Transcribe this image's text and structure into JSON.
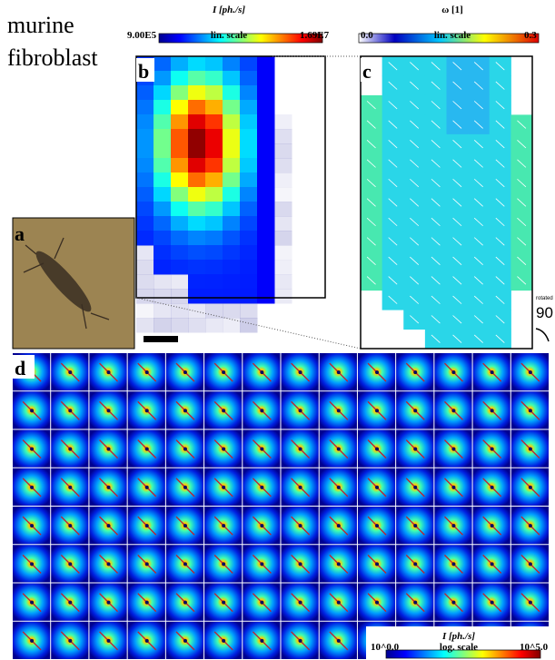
{
  "title": {
    "line1": "murine",
    "line2": "fibroblast"
  },
  "panels": {
    "a": "a",
    "b": "b",
    "c": "c",
    "d": "d"
  },
  "colorbar_intensity": {
    "label": "I [ph./s]",
    "min": "9.00E5",
    "scale": "lin. scale",
    "max": "1.69E7"
  },
  "colorbar_omega": {
    "label": "ω [1]",
    "min": "0.0",
    "scale": "lin. scale",
    "max": "0.3"
  },
  "rotation": {
    "label": "rotated",
    "angle": "90"
  },
  "colorbar_log": {
    "label": "I [ph./s]",
    "min": "10^0.0",
    "scale": "log. scale",
    "max": "10^5.0"
  }
}
